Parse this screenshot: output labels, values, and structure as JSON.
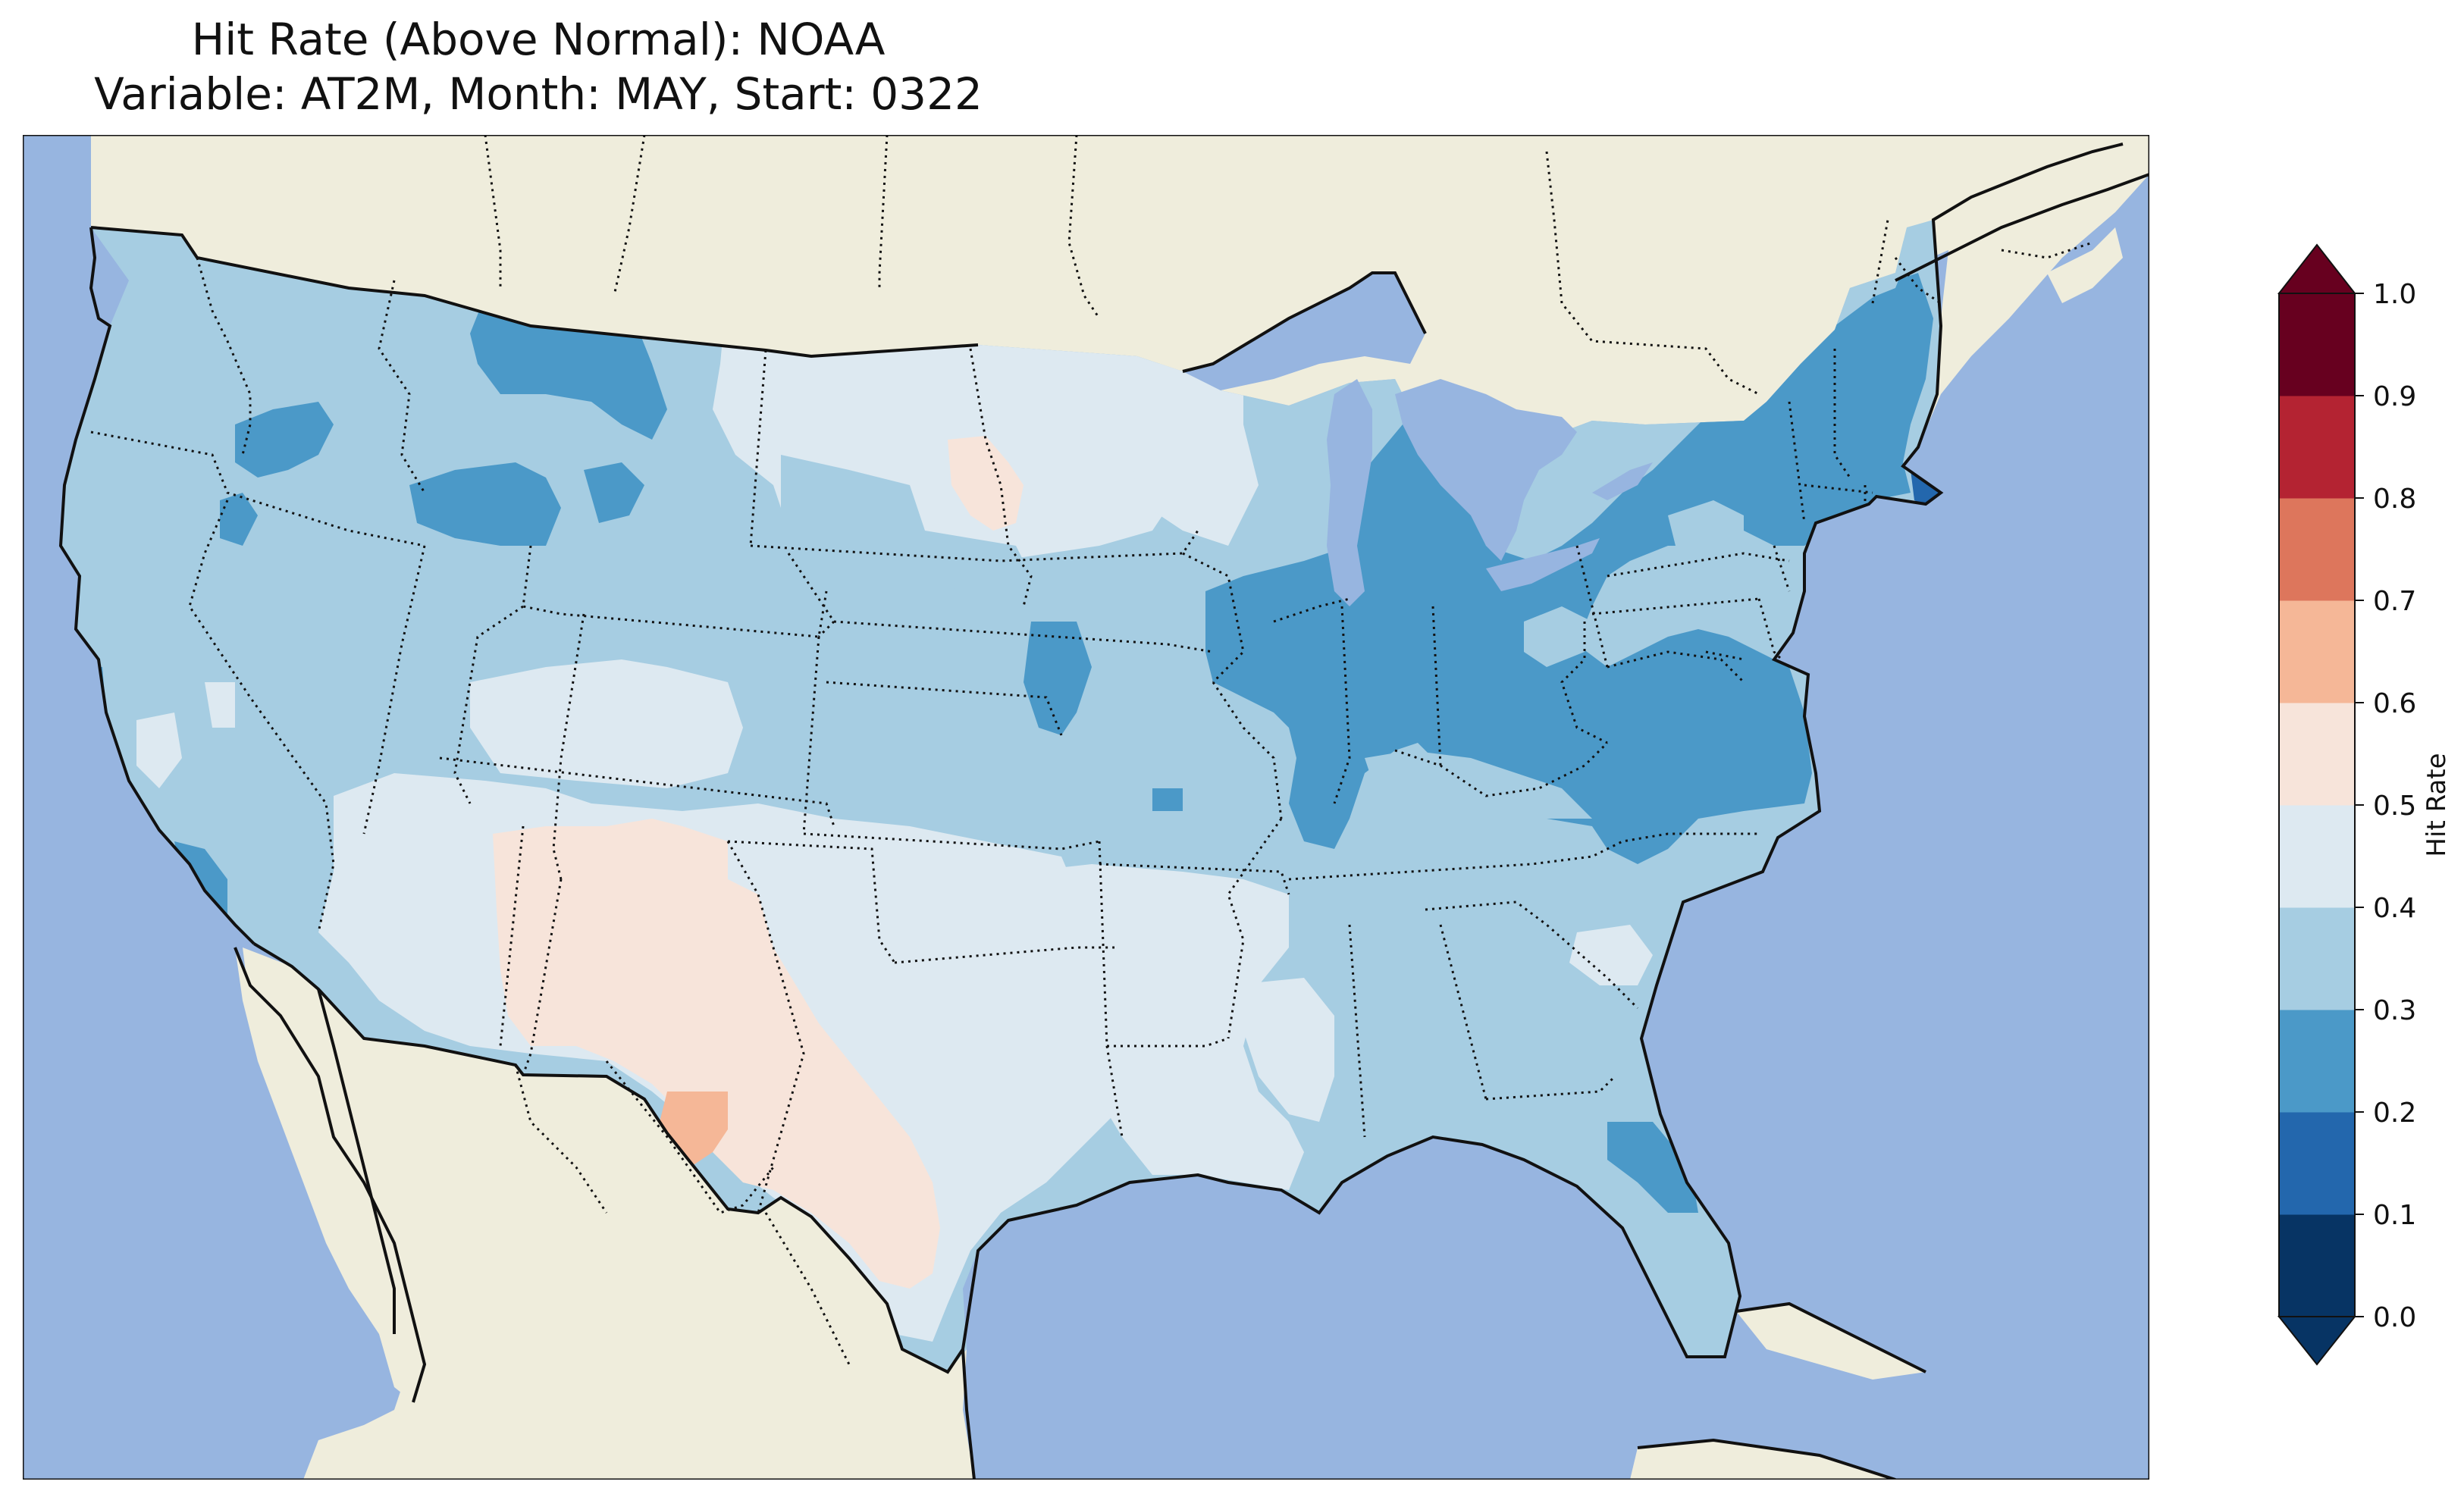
{
  "title": {
    "line1": "Hit Rate (Above Normal): NOAA",
    "line2": "Variable: AT2M, Month: MAY, Start: 0322"
  },
  "colors": {
    "ocean": "#97b5e0",
    "land": "#efeddc",
    "lakes": "#97b5e0",
    "border": "#111111"
  },
  "colorbar": {
    "label": "Hit Rate",
    "ticks": [
      "0.0",
      "0.1",
      "0.2",
      "0.3",
      "0.4",
      "0.5",
      "0.6",
      "0.7",
      "0.8",
      "0.9",
      "1.0"
    ],
    "colors": [
      "#053061",
      "#2166ac",
      "#4393c3",
      "#92c5de",
      "#d1e5f0",
      "#f7f7f7",
      "#fddbc7",
      "#f4a582",
      "#d6604d",
      "#b2182b",
      "#67001f"
    ],
    "bins": [
      {
        "range": "0.0-0.1",
        "color": "#073464"
      },
      {
        "range": "0.1-0.2",
        "color": "#2367ad"
      },
      {
        "range": "0.2-0.3",
        "color": "#4b99c8"
      },
      {
        "range": "0.3-0.4",
        "color": "#a6cde2"
      },
      {
        "range": "0.4-0.5",
        "color": "#dde9f1"
      },
      {
        "range": "0.5-0.6",
        "color": "#f7e4da"
      },
      {
        "range": "0.6-0.7",
        "color": "#f5b797"
      },
      {
        "range": "0.7-0.8",
        "color": "#dd765c"
      },
      {
        "range": "0.8-0.9",
        "color": "#b42332"
      },
      {
        "range": "0.9-1.0",
        "color": "#67001f"
      }
    ]
  },
  "regions": [
    {
      "name": "Pacific Northwest / West",
      "hit_rate_bin": "0.3-0.4"
    },
    {
      "name": "Northern Rockies (central MT/ID patches)",
      "hit_rate_bin": "0.2-0.3"
    },
    {
      "name": "North Dakota / Minnesota",
      "hit_rate_bin": "0.4-0.5"
    },
    {
      "name": "South Dakota patch",
      "hit_rate_bin": "0.5-0.6"
    },
    {
      "name": "Southwest / New Mexico / West Texas",
      "hit_rate_bin": "0.5-0.6"
    },
    {
      "name": "Big Bend Texas",
      "hit_rate_bin": "0.6-0.7"
    },
    {
      "name": "Texas / Oklahoma / Arkansas / Louisiana",
      "hit_rate_bin": "0.4-0.5"
    },
    {
      "name": "Great Lakes / Ohio Valley / Northeast",
      "hit_rate_bin": "0.2-0.3"
    },
    {
      "name": "Southeast / Central Plains",
      "hit_rate_bin": "0.3-0.4"
    },
    {
      "name": "Coastal Massachusetts",
      "hit_rate_bin": "0.1-0.2"
    }
  ]
}
